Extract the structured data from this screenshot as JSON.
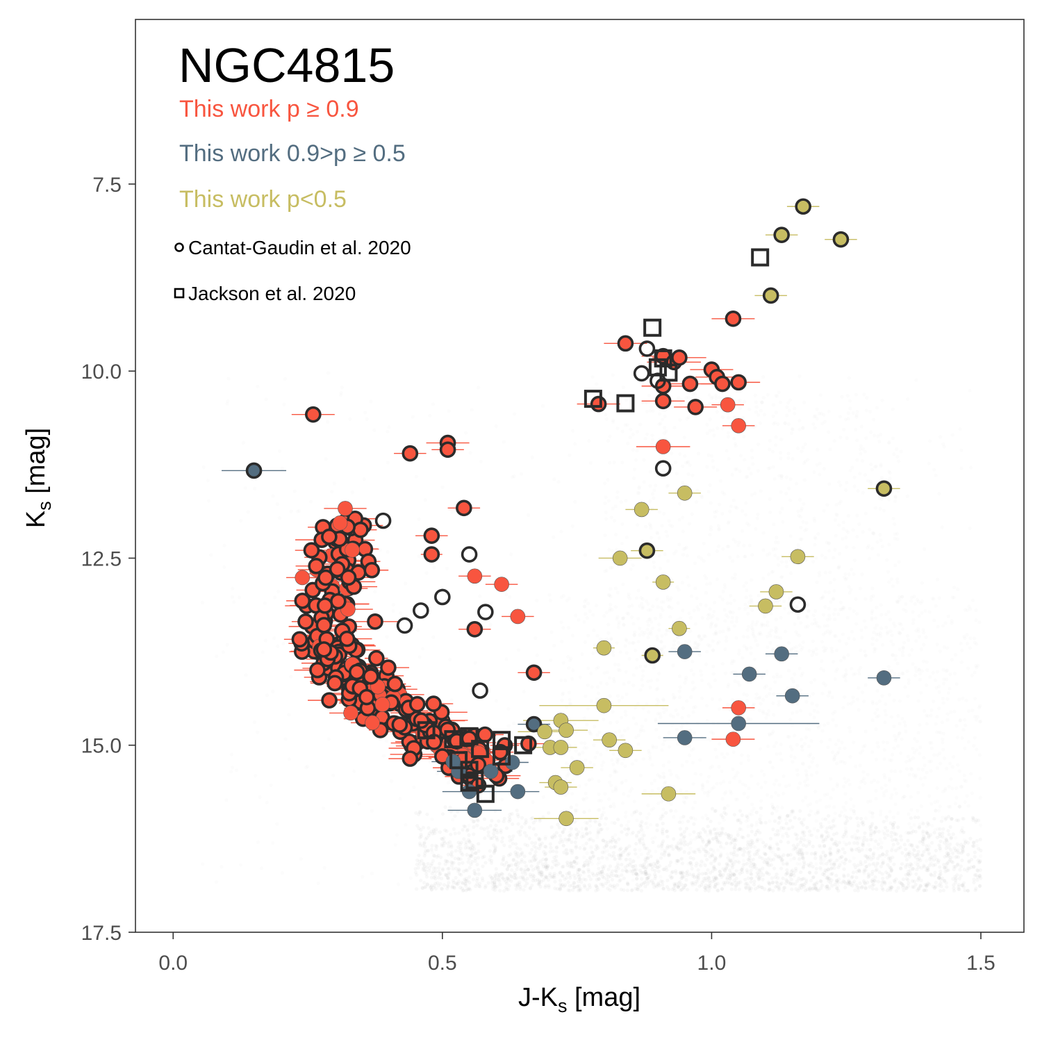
{
  "chart_data": {
    "type": "scatter",
    "title": "NGC4815",
    "xlabel": "J-Ks [mag]",
    "ylabel": "Ks [mag]",
    "xlabel_main": "J-K",
    "xlabel_sub": "s",
    "xlabel_suffix": " [mag]",
    "ylabel_main": "K",
    "ylabel_sub": "s",
    "ylabel_suffix": " [mag]",
    "xlim": [
      -0.07,
      1.58
    ],
    "ylim": [
      5.3,
      17.5
    ],
    "y_inverted": true,
    "x_ticks": [
      0.0,
      0.5,
      1.0,
      1.5
    ],
    "x_tick_labels": [
      "0.0",
      "0.5",
      "1.0",
      "1.5"
    ],
    "y_ticks": [
      7.5,
      10.0,
      12.5,
      15.0,
      17.5
    ],
    "y_tick_labels": [
      "7.5",
      "10.0",
      "12.5",
      "15.0",
      "17.5"
    ],
    "grid": false,
    "legend": {
      "placement": "top-left",
      "entries": [
        {
          "label": "This work p ≥ 0.9",
          "color": "#f8553f"
        },
        {
          "label": "This work 0.9>p ≥ 0.5",
          "color": "#536d80"
        },
        {
          "label": "This work p<0.5",
          "color": "#c7bd62"
        },
        {
          "label": "Cantat-Gaudin et al. 2020",
          "marker": "open-circle"
        },
        {
          "label": "Jackson et al. 2020",
          "marker": "open-square"
        }
      ]
    },
    "colors": {
      "high": "#f8553f",
      "mid": "#536d80",
      "low": "#c7bd62",
      "outline": "#2b2b2b",
      "field": "#b0b0b0"
    },
    "field_stars": "dense grey background cloud: red-clump/giant branch near J-Ks 0.8-1.3, Ks 10-14; main sequence spreading to faint end Ks ~16.5-17 for J-Ks 0.55-1.5",
    "series": [
      {
        "name": "This work p ≥ 0.9",
        "color": "#f8553f",
        "points": [
          {
            "x": 0.26,
            "y": 10.58,
            "xerr": 0.04,
            "cg": true
          },
          {
            "x": 0.44,
            "y": 11.1,
            "xerr": 0.03,
            "cg": true
          },
          {
            "x": 0.51,
            "y": 10.96,
            "xerr": 0.04,
            "cg": true
          },
          {
            "x": 0.51,
            "y": 11.05,
            "xerr": 0.03,
            "cg": true
          },
          {
            "x": 0.54,
            "y": 11.83,
            "xerr": 0.03,
            "cg": true
          },
          {
            "x": 0.48,
            "y": 12.2,
            "xerr": 0.03,
            "cg": true
          },
          {
            "x": 0.48,
            "y": 12.45,
            "xerr": 0.02,
            "cg": true
          },
          {
            "x": 0.31,
            "y": 12.03,
            "xerr": 0.03,
            "cg": false
          },
          {
            "x": 0.24,
            "y": 12.76,
            "xerr": 0.03,
            "cg": false
          },
          {
            "x": 0.24,
            "y": 13.07,
            "xerr": 0.03,
            "cg": true
          },
          {
            "x": 0.56,
            "y": 12.74,
            "xerr": 0.03,
            "cg": false
          },
          {
            "x": 0.61,
            "y": 12.85,
            "xerr": 0.03,
            "cg": false
          },
          {
            "x": 0.64,
            "y": 13.28,
            "xerr": 0.03,
            "cg": false
          },
          {
            "x": 0.56,
            "y": 13.45,
            "xerr": 0.03,
            "cg": true
          },
          {
            "x": 0.67,
            "y": 14.03,
            "xerr": 0.03,
            "cg": true
          },
          {
            "x": 0.66,
            "y": 14.98,
            "xerr": 0.03,
            "cg": true
          },
          {
            "x": 0.44,
            "y": 15.18,
            "xerr": 0.04,
            "cg": true
          },
          {
            "x": 0.28,
            "y": 13.72,
            "xerr": 0.03,
            "cg": true
          },
          {
            "x": 0.29,
            "y": 14.4,
            "xerr": 0.04,
            "cg": true
          },
          {
            "x": 0.33,
            "y": 14.57,
            "xerr": 0.04,
            "cg": false
          },
          {
            "x": 0.37,
            "y": 14.7,
            "xerr": 0.04,
            "cg": false
          },
          {
            "x": 0.5,
            "y": 15.15,
            "xerr": 0.03,
            "cg": true
          },
          {
            "x": 0.91,
            "y": 9.8,
            "xerr": 0.04,
            "cg": true
          },
          {
            "x": 0.84,
            "y": 9.63,
            "xerr": 0.04,
            "cg": true
          },
          {
            "x": 0.93,
            "y": 9.88,
            "xerr": 0.05,
            "cg": true
          },
          {
            "x": 0.94,
            "y": 9.82,
            "xerr": 0.05,
            "cg": true
          },
          {
            "x": 0.91,
            "y": 10.2,
            "xerr": 0.04,
            "cg": true
          },
          {
            "x": 0.91,
            "y": 10.4,
            "xerr": 0.04,
            "cg": true
          },
          {
            "x": 0.96,
            "y": 10.17,
            "xerr": 0.04,
            "cg": true
          },
          {
            "x": 0.97,
            "y": 10.48,
            "xerr": 0.04,
            "cg": true
          },
          {
            "x": 1.0,
            "y": 9.98,
            "xerr": 0.04,
            "cg": true
          },
          {
            "x": 1.01,
            "y": 10.08,
            "xerr": 0.04,
            "cg": true
          },
          {
            "x": 1.02,
            "y": 10.17,
            "xerr": 0.04,
            "cg": true
          },
          {
            "x": 1.05,
            "y": 10.15,
            "xerr": 0.04,
            "cg": true
          },
          {
            "x": 1.03,
            "y": 10.45,
            "xerr": 0.03,
            "cg": false
          },
          {
            "x": 1.05,
            "y": 10.73,
            "xerr": 0.03,
            "cg": false
          },
          {
            "x": 1.04,
            "y": 9.3,
            "xerr": 0.04,
            "cg": true
          },
          {
            "x": 0.79,
            "y": 10.44,
            "xerr": 0.04,
            "cg": true
          },
          {
            "x": 0.91,
            "y": 11.01,
            "xerr": 0.05,
            "cg": false
          },
          {
            "x": 1.05,
            "y": 14.5,
            "xerr": 0.03,
            "cg": false
          },
          {
            "x": 1.04,
            "y": 14.92,
            "xerr": 0.04,
            "cg": false
          }
        ]
      },
      {
        "name": "This work 0.9>p ≥ 0.5",
        "color": "#536d80",
        "points": [
          {
            "x": 0.15,
            "y": 11.33,
            "xerr": 0.06,
            "cg": true
          },
          {
            "x": 0.95,
            "y": 13.75,
            "xerr": 0.03,
            "cg": false
          },
          {
            "x": 1.13,
            "y": 13.78,
            "xerr": 0.03,
            "cg": false
          },
          {
            "x": 1.07,
            "y": 14.05,
            "xerr": 0.03,
            "cg": false
          },
          {
            "x": 1.15,
            "y": 14.34,
            "xerr": 0.03,
            "cg": false
          },
          {
            "x": 1.32,
            "y": 14.1,
            "xerr": 0.03,
            "cg": false
          },
          {
            "x": 1.05,
            "y": 14.71,
            "xerr": 0.15,
            "cg": false
          },
          {
            "x": 0.95,
            "y": 14.9,
            "xerr": 0.04,
            "cg": false
          },
          {
            "x": 0.64,
            "y": 15.62,
            "xerr": 0.04,
            "cg": false
          },
          {
            "x": 0.56,
            "y": 15.87,
            "xerr": 0.05,
            "cg": false
          },
          {
            "x": 0.55,
            "y": 15.62,
            "xerr": 0.05,
            "cg": false
          },
          {
            "x": 0.53,
            "y": 15.35,
            "xerr": 0.04,
            "cg": false
          },
          {
            "x": 0.59,
            "y": 15.35,
            "xerr": 0.04,
            "cg": false
          },
          {
            "x": 0.63,
            "y": 15.23,
            "xerr": 0.03,
            "cg": false
          },
          {
            "x": 0.67,
            "y": 14.72,
            "xerr": 0.03,
            "cg": true
          },
          {
            "x": 0.52,
            "y": 15.22,
            "xerr": 0.04,
            "cg": false
          }
        ]
      },
      {
        "name": "This work p<0.5",
        "color": "#c7bd62",
        "points": [
          {
            "x": 1.17,
            "y": 7.8,
            "xerr": 0.03,
            "cg": true
          },
          {
            "x": 1.13,
            "y": 8.18,
            "xerr": 0.03,
            "cg": true
          },
          {
            "x": 1.24,
            "y": 8.24,
            "xerr": 0.03,
            "cg": true
          },
          {
            "x": 1.11,
            "y": 8.99,
            "xerr": 0.03,
            "cg": true
          },
          {
            "x": 1.32,
            "y": 11.57,
            "xerr": 0.03,
            "cg": true
          },
          {
            "x": 0.95,
            "y": 11.63,
            "xerr": 0.03,
            "cg": false
          },
          {
            "x": 0.87,
            "y": 11.85,
            "xerr": 0.03,
            "cg": false
          },
          {
            "x": 0.88,
            "y": 12.4,
            "xerr": 0.03,
            "cg": true
          },
          {
            "x": 0.83,
            "y": 12.5,
            "xerr": 0.04,
            "cg": false
          },
          {
            "x": 0.91,
            "y": 12.82,
            "xerr": 0.02,
            "cg": false
          },
          {
            "x": 1.16,
            "y": 12.48,
            "xerr": 0.03,
            "cg": false
          },
          {
            "x": 1.12,
            "y": 12.95,
            "xerr": 0.03,
            "cg": false
          },
          {
            "x": 1.1,
            "y": 13.14,
            "xerr": 0.03,
            "cg": false
          },
          {
            "x": 0.94,
            "y": 13.44,
            "xerr": 0.02,
            "cg": false
          },
          {
            "x": 0.8,
            "y": 13.7,
            "xerr": 0.02,
            "cg": false
          },
          {
            "x": 0.89,
            "y": 13.8,
            "xerr": 0.02,
            "cg": true
          },
          {
            "x": 0.8,
            "y": 14.47,
            "xerr": 0.12,
            "cg": false
          },
          {
            "x": 0.72,
            "y": 14.67,
            "xerr": 0.07,
            "cg": false
          },
          {
            "x": 0.73,
            "y": 14.8,
            "xerr": 0.04,
            "cg": false
          },
          {
            "x": 0.69,
            "y": 14.82,
            "xerr": 0.05,
            "cg": false
          },
          {
            "x": 0.81,
            "y": 14.93,
            "xerr": 0.03,
            "cg": false
          },
          {
            "x": 0.84,
            "y": 15.07,
            "xerr": 0.03,
            "cg": false
          },
          {
            "x": 0.7,
            "y": 15.03,
            "xerr": 0.03,
            "cg": false
          },
          {
            "x": 0.72,
            "y": 15.03,
            "xerr": 0.03,
            "cg": false
          },
          {
            "x": 0.75,
            "y": 15.3,
            "xerr": 0.03,
            "cg": false
          },
          {
            "x": 0.71,
            "y": 15.5,
            "xerr": 0.03,
            "cg": false
          },
          {
            "x": 0.72,
            "y": 15.56,
            "xerr": 0.03,
            "cg": false
          },
          {
            "x": 0.92,
            "y": 15.65,
            "xerr": 0.05,
            "cg": false
          },
          {
            "x": 0.73,
            "y": 15.98,
            "xerr": 0.06,
            "cg": false
          }
        ]
      }
    ],
    "cluster_sequence": {
      "series": "This work p ≥ 0.9",
      "description": "dense cluster main sequence: ~260 members running from (J-Ks 0.33, Ks 12.0) down to (0.58, 15.3), most with Cantat-Gaudin 2020 circles",
      "path": [
        [
          0.33,
          12.0
        ],
        [
          0.3,
          12.8
        ],
        [
          0.29,
          13.4
        ],
        [
          0.32,
          13.9
        ],
        [
          0.36,
          14.2
        ],
        [
          0.4,
          14.5
        ],
        [
          0.46,
          14.75
        ],
        [
          0.52,
          15.0
        ],
        [
          0.58,
          15.3
        ]
      ]
    },
    "cantat_gaudin_open": [
      {
        "x": 0.39,
        "y": 12.0
      },
      {
        "x": 0.55,
        "y": 12.45
      },
      {
        "x": 0.5,
        "y": 13.02
      },
      {
        "x": 0.58,
        "y": 13.22
      },
      {
        "x": 0.46,
        "y": 13.2
      },
      {
        "x": 0.43,
        "y": 13.4
      },
      {
        "x": 0.57,
        "y": 14.27
      },
      {
        "x": 0.88,
        "y": 9.7
      },
      {
        "x": 0.87,
        "y": 10.03
      },
      {
        "x": 0.9,
        "y": 10.13
      },
      {
        "x": 0.91,
        "y": 11.3
      },
      {
        "x": 1.16,
        "y": 13.12
      }
    ],
    "jackson_squares": [
      {
        "x": 1.09,
        "y": 8.48
      },
      {
        "x": 0.89,
        "y": 9.42
      },
      {
        "x": 0.9,
        "y": 9.95
      },
      {
        "x": 0.91,
        "y": 9.83
      },
      {
        "x": 0.92,
        "y": 10.02
      },
      {
        "x": 0.78,
        "y": 10.37
      },
      {
        "x": 0.84,
        "y": 10.43
      },
      {
        "x": 0.47,
        "y": 14.8
      },
      {
        "x": 0.52,
        "y": 14.92
      },
      {
        "x": 0.55,
        "y": 14.88
      },
      {
        "x": 0.57,
        "y": 15.05
      },
      {
        "x": 0.61,
        "y": 14.93
      },
      {
        "x": 0.61,
        "y": 15.15
      },
      {
        "x": 0.65,
        "y": 15.0
      },
      {
        "x": 0.53,
        "y": 15.2
      },
      {
        "x": 0.55,
        "y": 15.33
      },
      {
        "x": 0.56,
        "y": 15.47
      },
      {
        "x": 0.55,
        "y": 15.5
      },
      {
        "x": 0.58,
        "y": 15.65
      }
    ]
  }
}
